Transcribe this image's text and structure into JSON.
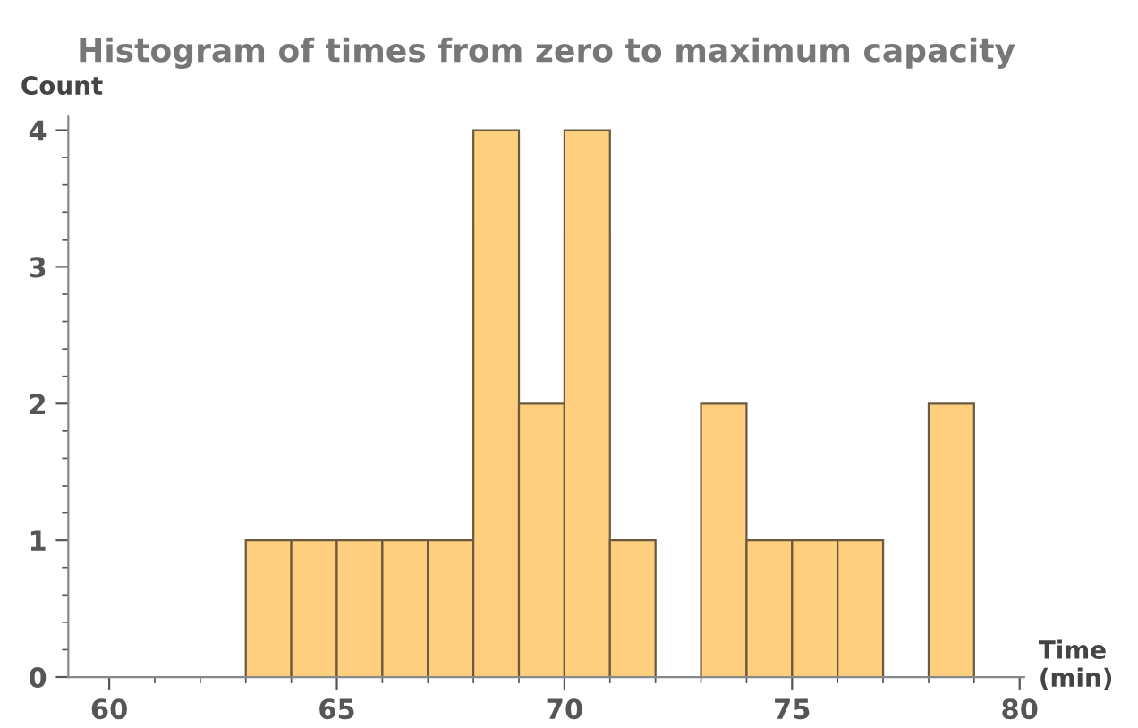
{
  "chart_data": {
    "type": "histogram",
    "title": "Histogram of times from zero to maximum capacity",
    "xlabel": "Time\n(min)",
    "ylabel": "Count",
    "bins": [
      63,
      64,
      65,
      66,
      67,
      68,
      69,
      70,
      71,
      72,
      73,
      74,
      75,
      76,
      77,
      78,
      79
    ],
    "values": [
      1,
      1,
      1,
      1,
      1,
      4,
      2,
      4,
      1,
      0,
      2,
      1,
      1,
      1,
      0,
      2
    ],
    "color": "#fdcf7f",
    "xlim": [
      59.1,
      80.1
    ],
    "xticks": [
      60,
      65,
      70,
      75,
      80
    ],
    "ylim": [
      0,
      4.1
    ],
    "yticks": [
      0,
      1,
      2,
      3,
      4
    ],
    "grid": false,
    "legend": false
  }
}
